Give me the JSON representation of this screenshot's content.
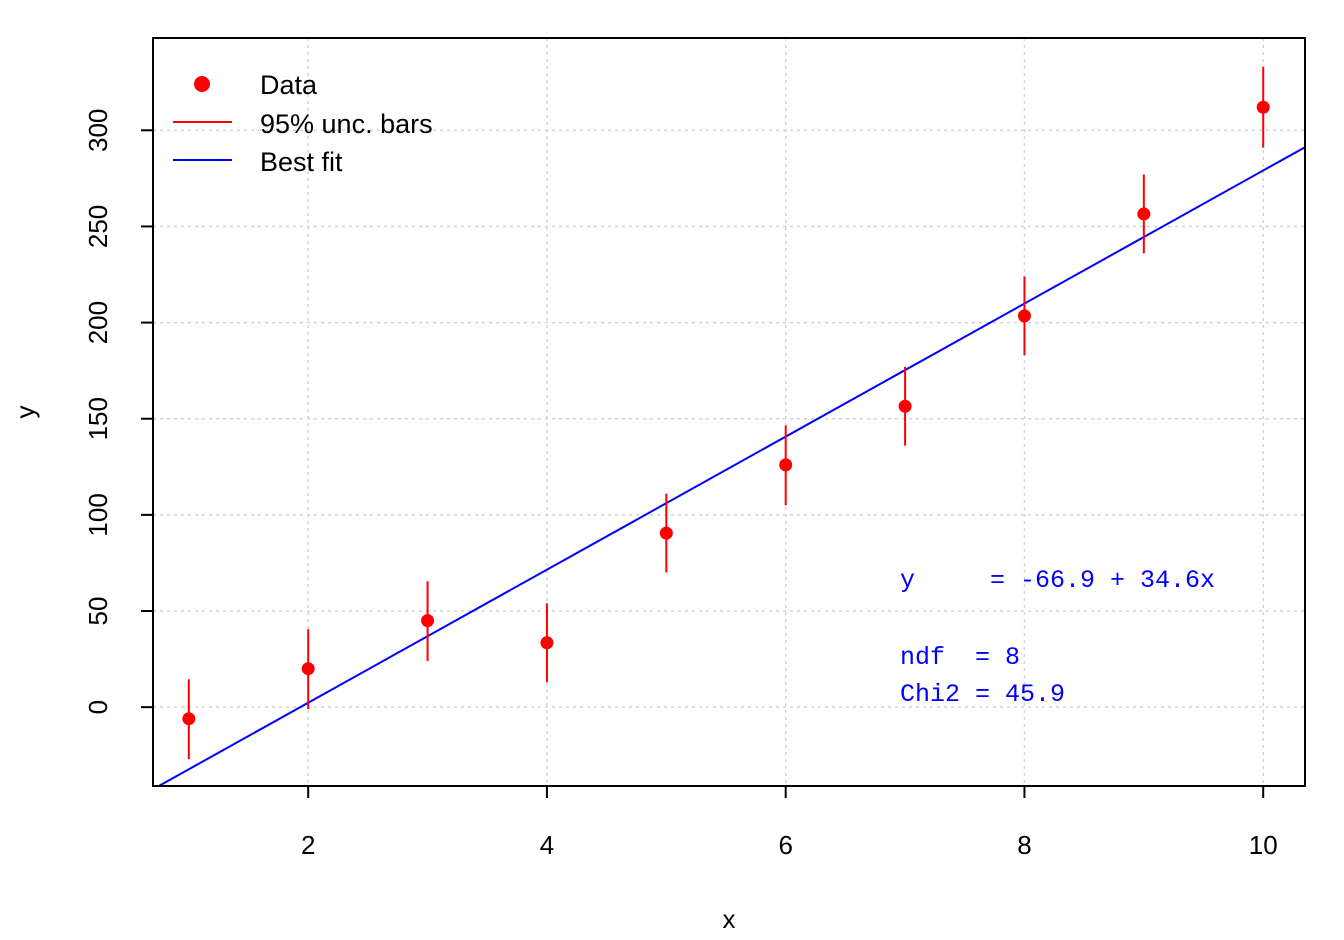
{
  "chart_data": {
    "type": "scatter",
    "title": "",
    "xlabel": "x",
    "ylabel": "y",
    "xlim": [
      0.7,
      10.35
    ],
    "ylim": [
      -41,
      348
    ],
    "x_ticks": [
      2,
      4,
      6,
      8,
      10
    ],
    "y_ticks": [
      0,
      50,
      100,
      150,
      200,
      250,
      300
    ],
    "grid": true,
    "legend_position": "top-left",
    "legend": [
      {
        "label": "Data",
        "kind": "point",
        "color": "#ff0000"
      },
      {
        "label": "95% unc. bars",
        "kind": "line",
        "color": "#ff0000"
      },
      {
        "label": "Best fit",
        "kind": "line",
        "color": "#0000ff"
      }
    ],
    "series": [
      {
        "name": "Data",
        "color": "#ff0000",
        "x": [
          1,
          2,
          3,
          4,
          5,
          6,
          7,
          8,
          9,
          10
        ],
        "y": [
          -6,
          20,
          45,
          33.5,
          90.5,
          126,
          156.5,
          203.5,
          256.5,
          312
        ],
        "y_lower": [
          -27,
          -1,
          24,
          13,
          70,
          105,
          136,
          183,
          236,
          291
        ],
        "y_upper": [
          14.5,
          40.5,
          65.5,
          54,
          111,
          146.5,
          177,
          224,
          277,
          333
        ]
      }
    ],
    "fit": {
      "name": "Best fit",
      "color": "#0000ff",
      "intercept": -66.9,
      "slope": 34.6
    },
    "annotations": [
      "y     = -66.9 + 34.6x",
      "ndf  = 8",
      "Chi2 = 45.9"
    ]
  }
}
